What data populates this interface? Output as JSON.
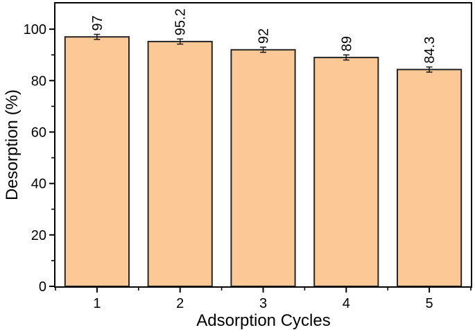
{
  "figure": {
    "background_color": "#ffffff"
  },
  "chart_data": {
    "type": "bar",
    "title": "",
    "xlabel": "Adsorption Cycles",
    "ylabel": "Desorption (%)",
    "categories": [
      "1",
      "2",
      "3",
      "4",
      "5"
    ],
    "values": [
      97,
      95.2,
      92,
      89,
      84.3
    ],
    "errors": [
      1,
      1,
      1,
      1,
      1
    ],
    "value_label_rotation_deg": -90,
    "xlim": [
      0.5,
      5.5
    ],
    "ylim": [
      0,
      110
    ],
    "yticks_major": [
      0,
      20,
      40,
      60,
      80,
      100
    ],
    "yticks_minor": [
      10,
      30,
      50,
      70,
      90
    ],
    "xticks_major": [
      1,
      2,
      3,
      4,
      5
    ],
    "xticks_minor": [
      0.5,
      1.5,
      2.5,
      3.5,
      4.5,
      5.5
    ],
    "bar_width_units": 0.77,
    "grid": false,
    "legend": null,
    "frame": "box",
    "colors": {
      "bar_fill": "#FBC896",
      "bar_edge": "#262626",
      "axis": "#000000",
      "text": "#000000",
      "error_bar": "#1a1a1a"
    }
  }
}
